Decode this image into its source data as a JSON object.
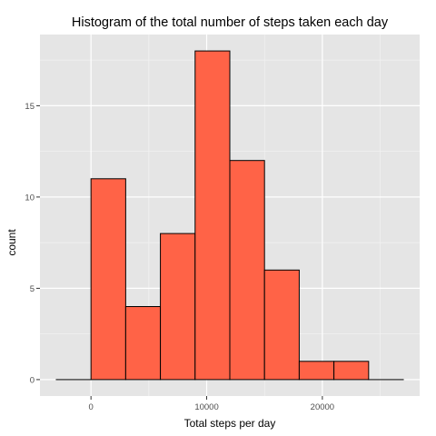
{
  "chart_data": {
    "type": "bar",
    "title": "Histogram of the total number of steps taken each day",
    "xlabel": "Total steps per day",
    "ylabel": "count",
    "xlim": [
      -4410,
      28410
    ],
    "ylim": [
      -0.9,
      18.9
    ],
    "x_ticks": [
      {
        "value": 0,
        "label": "0"
      },
      {
        "value": 10000,
        "label": "10000"
      },
      {
        "value": 20000,
        "label": "20000"
      }
    ],
    "y_ticks": [
      {
        "value": 0,
        "label": "0"
      },
      {
        "value": 5,
        "label": "5"
      },
      {
        "value": 10,
        "label": "10"
      },
      {
        "value": 15,
        "label": "15"
      }
    ],
    "bins": [
      {
        "x0": -3000,
        "x1": 0,
        "count": 0
      },
      {
        "x0": 0,
        "x1": 3000,
        "count": 11
      },
      {
        "x0": 3000,
        "x1": 6000,
        "count": 4
      },
      {
        "x0": 6000,
        "x1": 9000,
        "count": 8
      },
      {
        "x0": 9000,
        "x1": 12000,
        "count": 18
      },
      {
        "x0": 12000,
        "x1": 15000,
        "count": 12
      },
      {
        "x0": 15000,
        "x1": 18000,
        "count": 6
      },
      {
        "x0": 18000,
        "x1": 21000,
        "count": 1
      },
      {
        "x0": 21000,
        "x1": 24000,
        "count": 1
      },
      {
        "x0": 24000,
        "x1": 27000,
        "count": 0
      }
    ],
    "grid": true,
    "colors": {
      "fill": "#ff6347",
      "stroke": "#000000",
      "panel": "#e5e5e5",
      "grid_major": "#ffffff",
      "grid_minor": "#f2f2f2"
    }
  }
}
